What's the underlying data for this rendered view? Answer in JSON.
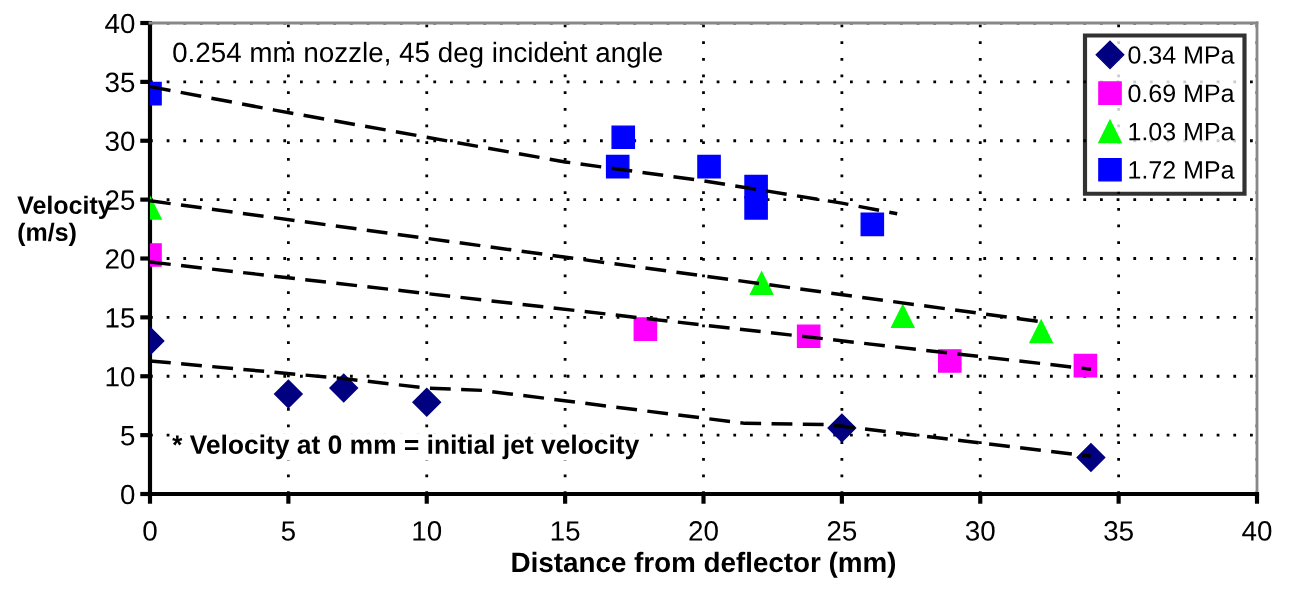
{
  "chart_data": {
    "type": "scatter",
    "xlabel": "Distance from deflector (mm)",
    "ylabel": "Velocity\n(m/s)",
    "annotations": [
      "0.254 mm nozzle, 45 deg incident angle",
      "* Velocity at 0 mm = initial jet velocity"
    ],
    "xlim": [
      0,
      40
    ],
    "ylim": [
      0,
      40
    ],
    "xticks": [
      0,
      5,
      10,
      15,
      20,
      25,
      30,
      35,
      40
    ],
    "yticks": [
      0,
      5,
      10,
      15,
      20,
      25,
      30,
      35,
      40
    ],
    "grid": true,
    "legend": "top right",
    "series": [
      {
        "name": "0.34 MPa",
        "color": "#000080",
        "marker": "diamond",
        "x": [
          0,
          5,
          7,
          10,
          25,
          34
        ],
        "values": [
          13.0,
          8.5,
          9.0,
          7.8,
          5.6,
          3.1
        ]
      },
      {
        "name": "0.69 MPa",
        "color": "#ff00ff",
        "marker": "square",
        "x": [
          0,
          17.9,
          23.8,
          28.9,
          33.8
        ],
        "values": [
          20.3,
          14.0,
          13.4,
          11.3,
          10.9
        ]
      },
      {
        "name": "1.03 MPa",
        "color": "#00ff00",
        "marker": "triangle",
        "x": [
          0,
          22.1,
          27.2,
          32.2
        ],
        "values": [
          24.3,
          17.9,
          15.1,
          13.8
        ]
      },
      {
        "name": "1.72 MPa",
        "color": "#0000ff",
        "marker": "square",
        "x": [
          0,
          17.1,
          16.9,
          20.2,
          21.9,
          21.9,
          26.1
        ],
        "values": [
          34.0,
          30.3,
          27.8,
          27.8,
          26.1,
          24.3,
          22.9
        ]
      },
      {
        "type": "line",
        "color": "#000000",
        "line_style": "dashed",
        "x": [
          0,
          7,
          10,
          12,
          21.5,
          24.5,
          34
        ],
        "values": [
          11.3,
          9.8,
          9.0,
          8.8,
          6.0,
          5.9,
          3.2
        ]
      },
      {
        "type": "line",
        "color": "#000000",
        "line_style": "dashed",
        "x": [
          0,
          34
        ],
        "values": [
          19.7,
          10.6
        ]
      },
      {
        "type": "line",
        "color": "#000000",
        "line_style": "dashed",
        "x": [
          0,
          32.3
        ],
        "values": [
          24.9,
          14.6
        ]
      },
      {
        "type": "line",
        "color": "#000000",
        "line_style": "dashed",
        "x": [
          0,
          4.5,
          10,
          15,
          20,
          25,
          27
        ],
        "values": [
          34.6,
          32.6,
          30.3,
          28.2,
          26.6,
          24.7,
          23.8
        ]
      }
    ]
  }
}
